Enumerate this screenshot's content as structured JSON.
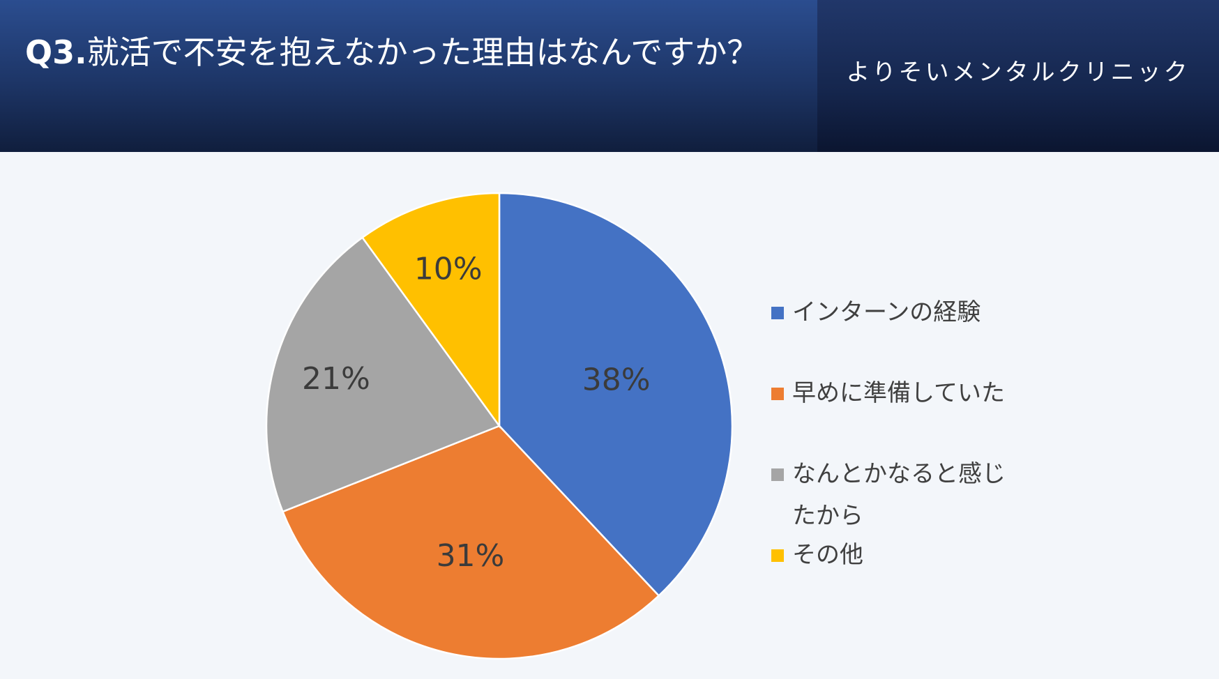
{
  "header": {
    "title_number": "Q3.",
    "title_text": "就活で不安を抱えなかった理由はなんですか？",
    "brand": "よりそいメンタルクリニック"
  },
  "chart_data": {
    "type": "pie",
    "categories": [
      "インターンの経験",
      "早めに準備していた",
      "なんとかなると感じたから",
      "その他"
    ],
    "values": [
      38,
      31,
      21,
      10
    ],
    "labels": [
      "38%",
      "31%",
      "21%",
      "10%"
    ],
    "colors": [
      "#4472c4",
      "#ed7d31",
      "#a5a5a5",
      "#ffc000"
    ],
    "legend_position": "right",
    "start_angle": "top, clockwise"
  }
}
